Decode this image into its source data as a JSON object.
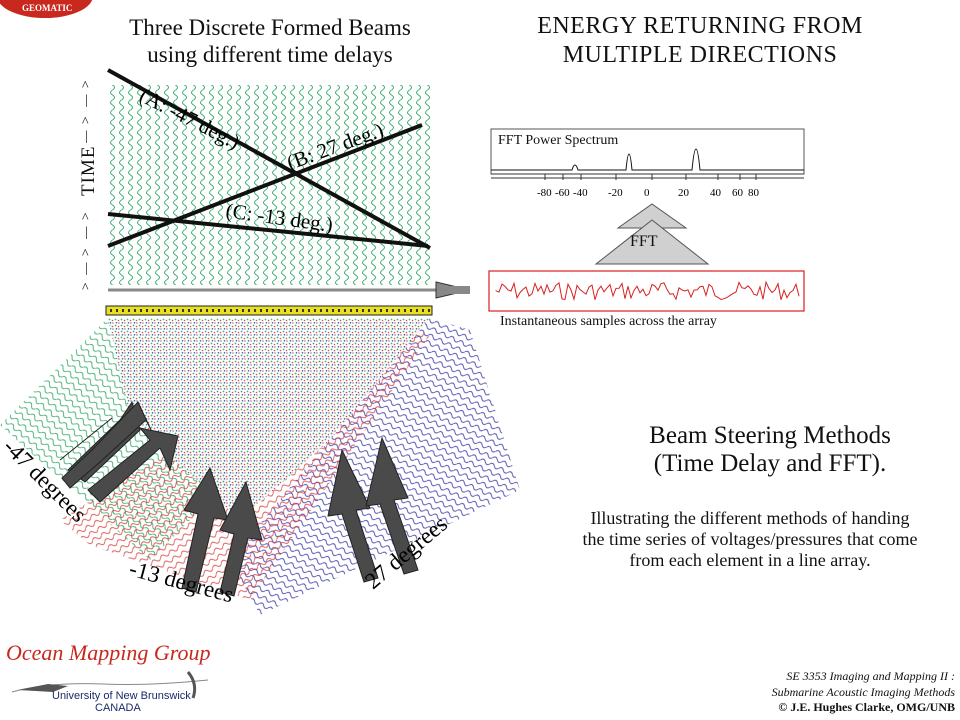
{
  "header": {
    "left_title_line1": "Three Discrete Formed Beams",
    "left_title_line2": "using different time delays",
    "right_title_line1": "ENERGY RETURNING FROM",
    "right_title_line2": "MULTIPLE DIRECTIONS",
    "top_logo_text": "GEOMATIC"
  },
  "beams": {
    "time_label": "TIME",
    "beam_a": "(A: -47 deg.)",
    "beam_b": "(B: 27 deg.)",
    "beam_c": "(C: -13 deg.)"
  },
  "incoming": {
    "label_47": "-47 degrees",
    "label_13": "-13 degrees",
    "label_27": "27 degrees"
  },
  "fft": {
    "caption": "FFT Power Spectrum",
    "arrow_label": "FFT",
    "ticks": [
      "-80",
      "-60",
      "-40",
      "-20",
      "0",
      "20",
      "40",
      "60",
      "80"
    ],
    "samples_caption": "Instantaneous samples across the array"
  },
  "method": {
    "title_line1": "Beam Steering Methods",
    "title_line2": "(Time Delay and FFT).",
    "desc_line1": "Illustrating the different methods of handing",
    "desc_line2": "the time series of voltages/pressures that come",
    "desc_line3": "from each element in a line array."
  },
  "footer": {
    "group": "Ocean Mapping Group",
    "unb_line1": "University of New Brunswick",
    "unb_line2": "CANADA",
    "course_line1": "SE 3353 Imaging and Mapping II :",
    "course_line2": "Submarine Acoustic Imaging Methods",
    "copyright": "© J.E. Hughes Clarke, OMG/UNB"
  },
  "colors": {
    "wave_green": "#2fa866",
    "wave_red": "#d83a3a",
    "wave_blue": "#3a3aa8",
    "array_yellow": "#e8e020",
    "arrow_gray": "#4a4a4a",
    "signal_red": "#d82020",
    "omg_red": "#c8281e"
  }
}
